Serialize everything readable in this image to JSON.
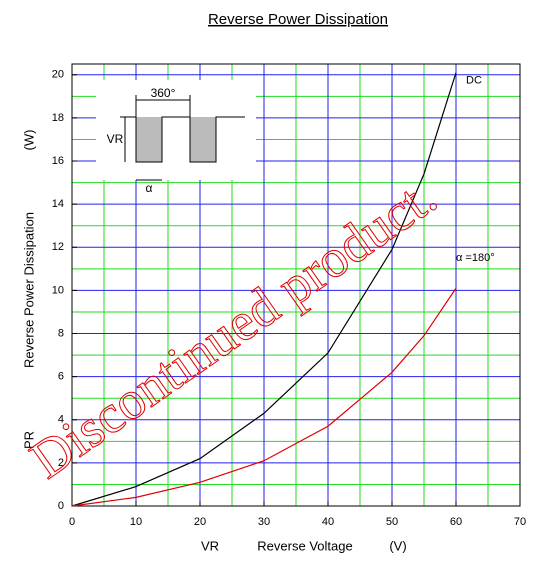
{
  "chart_data": {
    "type": "line",
    "title": "Reverse Power Dissipation",
    "xlabel_symbol": "VR",
    "xlabel": "Reverse Voltage",
    "xlabel_unit": "(V)",
    "ylabel_symbol": "PR",
    "ylabel": "Reverse Power Dissipation",
    "ylabel_unit": "(W)",
    "x": [
      0,
      10,
      20,
      30,
      40,
      50,
      55,
      60
    ],
    "series": [
      {
        "name": "DC",
        "color": "#000000",
        "values": [
          0,
          0.9,
          2.2,
          4.3,
          7.1,
          11.9,
          15.4,
          20.1
        ]
      },
      {
        "name": "α =180°",
        "color": "#e00000",
        "values": [
          0,
          0.4,
          1.1,
          2.1,
          3.7,
          6.2,
          7.9,
          10.1
        ]
      }
    ],
    "xlim": [
      0,
      70
    ],
    "xticks": [
      0,
      10,
      20,
      30,
      40,
      50,
      60,
      70
    ],
    "xminorticks": [
      5,
      15,
      25,
      35,
      45,
      55,
      65
    ],
    "ylim": [
      0,
      20.5
    ],
    "yticks": [
      0,
      2,
      4,
      6,
      8,
      10,
      12,
      14,
      16,
      18,
      20
    ],
    "yminorticks": [
      1,
      3,
      5,
      7,
      9,
      11,
      13,
      15,
      17,
      19
    ],
    "grid": true,
    "major_grid_color": "#2222ee",
    "minor_grid_color": "#22dd22",
    "inset": {
      "period": "360°",
      "amplitude": "VR",
      "width": "α"
    },
    "watermark": "Discontinued product."
  }
}
